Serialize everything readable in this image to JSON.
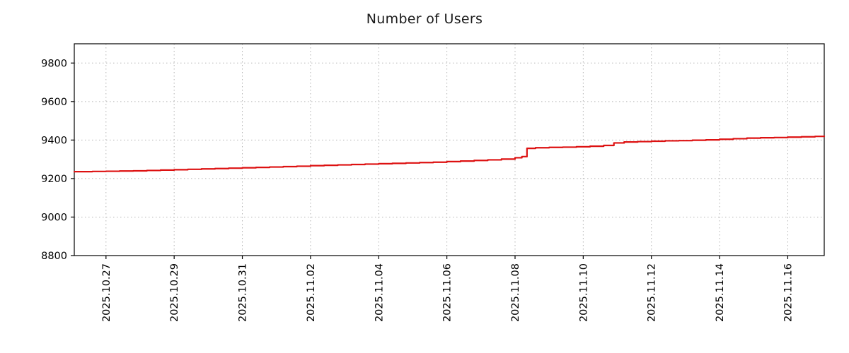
{
  "chart_data": {
    "type": "line",
    "title": "Number of Users",
    "xlabel": "",
    "ylabel": "",
    "legend_position": "none",
    "grid": "dotted",
    "line_color": "#dd1111",
    "axis_color": "#000000",
    "grid_color": "#b3b3b3",
    "tick_label_color": "#000000",
    "x_unit": "days since 2025.10.27",
    "xlim": [
      -0.93,
      21.07
    ],
    "ylim": [
      8800,
      9900
    ],
    "y_ticks": [
      8800,
      9000,
      9200,
      9400,
      9600,
      9800
    ],
    "x_ticks": [
      {
        "t": 0,
        "label": "2025.10.27"
      },
      {
        "t": 2,
        "label": "2025.10.29"
      },
      {
        "t": 4,
        "label": "2025.10.31"
      },
      {
        "t": 6,
        "label": "2025.11.02"
      },
      {
        "t": 8,
        "label": "2025.11.04"
      },
      {
        "t": 10,
        "label": "2025.11.06"
      },
      {
        "t": 12,
        "label": "2025.11.08"
      },
      {
        "t": 14,
        "label": "2025.11.10"
      },
      {
        "t": 16,
        "label": "2025.11.12"
      },
      {
        "t": 18,
        "label": "2025.11.14"
      },
      {
        "t": 20,
        "label": "2025.11.16"
      }
    ],
    "series": [
      {
        "name": "Number of Users",
        "color": "#dd1111",
        "points": [
          [
            -0.93,
            9236
          ],
          [
            -0.4,
            9237
          ],
          [
            0.0,
            9238
          ],
          [
            0.4,
            9239
          ],
          [
            0.8,
            9240
          ],
          [
            1.2,
            9242
          ],
          [
            1.6,
            9244
          ],
          [
            2.0,
            9246
          ],
          [
            2.4,
            9248
          ],
          [
            2.8,
            9250
          ],
          [
            3.2,
            9252
          ],
          [
            3.6,
            9254
          ],
          [
            4.0,
            9256
          ],
          [
            4.4,
            9258
          ],
          [
            4.8,
            9260
          ],
          [
            5.2,
            9262
          ],
          [
            5.6,
            9264
          ],
          [
            6.0,
            9267
          ],
          [
            6.4,
            9269
          ],
          [
            6.8,
            9271
          ],
          [
            7.2,
            9273
          ],
          [
            7.6,
            9275
          ],
          [
            8.0,
            9277
          ],
          [
            8.4,
            9279
          ],
          [
            8.8,
            9281
          ],
          [
            9.2,
            9283
          ],
          [
            9.6,
            9285
          ],
          [
            10.0,
            9288
          ],
          [
            10.4,
            9291
          ],
          [
            10.8,
            9294
          ],
          [
            11.2,
            9297
          ],
          [
            11.6,
            9301
          ],
          [
            12.0,
            9308
          ],
          [
            12.2,
            9314
          ],
          [
            12.35,
            9357
          ],
          [
            12.6,
            9360
          ],
          [
            13.0,
            9362
          ],
          [
            13.4,
            9363
          ],
          [
            13.8,
            9365
          ],
          [
            14.2,
            9368
          ],
          [
            14.6,
            9372
          ],
          [
            14.9,
            9385
          ],
          [
            15.2,
            9390
          ],
          [
            15.6,
            9392
          ],
          [
            16.0,
            9394
          ],
          [
            16.4,
            9396
          ],
          [
            16.8,
            9397
          ],
          [
            17.2,
            9399
          ],
          [
            17.6,
            9401
          ],
          [
            18.0,
            9404
          ],
          [
            18.4,
            9407
          ],
          [
            18.8,
            9410
          ],
          [
            19.2,
            9412
          ],
          [
            19.6,
            9413
          ],
          [
            20.0,
            9415
          ],
          [
            20.4,
            9417
          ],
          [
            20.8,
            9419
          ],
          [
            21.07,
            9420
          ]
        ]
      }
    ]
  }
}
